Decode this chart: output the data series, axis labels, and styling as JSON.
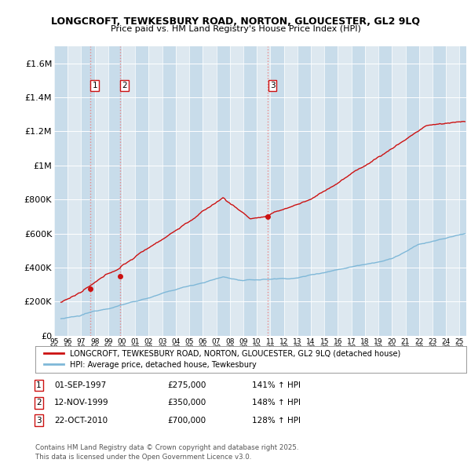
{
  "title_line1": "LONGCROFT, TEWKESBURY ROAD, NORTON, GLOUCESTER, GL2 9LQ",
  "title_line2": "Price paid vs. HM Land Registry's House Price Index (HPI)",
  "legend_line1": "LONGCROFT, TEWKESBURY ROAD, NORTON, GLOUCESTER, GL2 9LQ (detached house)",
  "legend_line2": "HPI: Average price, detached house, Tewkesbury",
  "footer": "Contains HM Land Registry data © Crown copyright and database right 2025.\nThis data is licensed under the Open Government Licence v3.0.",
  "transactions": [
    {
      "num": 1,
      "date_label": "01-SEP-1997",
      "date_x": 1997.67,
      "price": 275000,
      "pct": "141% ↑ HPI"
    },
    {
      "num": 2,
      "date_label": "12-NOV-1999",
      "date_x": 1999.87,
      "price": 350000,
      "pct": "148% ↑ HPI"
    },
    {
      "num": 3,
      "date_label": "22-OCT-2010",
      "date_x": 2010.81,
      "price": 700000,
      "pct": "128% ↑ HPI"
    }
  ],
  "hpi_color": "#7fb8d8",
  "price_color": "#cc1111",
  "dashed_color": "#e88888",
  "background_plot": "#dde8f0",
  "background_fig": "#ffffff",
  "band_color": "#c8dcea",
  "ylim": [
    0,
    1700000
  ],
  "xlim": [
    1995.5,
    2025.5
  ],
  "yticks": [
    0,
    200000,
    400000,
    600000,
    800000,
    1000000,
    1200000,
    1400000,
    1600000
  ],
  "ylabels": [
    "£0",
    "£200K",
    "£400K",
    "£600K",
    "£800K",
    "£1M",
    "£1.2M",
    "£1.4M",
    "£1.6M"
  ],
  "xtick_years": [
    1995,
    1996,
    1997,
    1998,
    1999,
    2000,
    2001,
    2002,
    2003,
    2004,
    2005,
    2006,
    2007,
    2008,
    2009,
    2010,
    2011,
    2012,
    2013,
    2014,
    2015,
    2016,
    2017,
    2018,
    2019,
    2020,
    2021,
    2022,
    2023,
    2024,
    2025
  ]
}
